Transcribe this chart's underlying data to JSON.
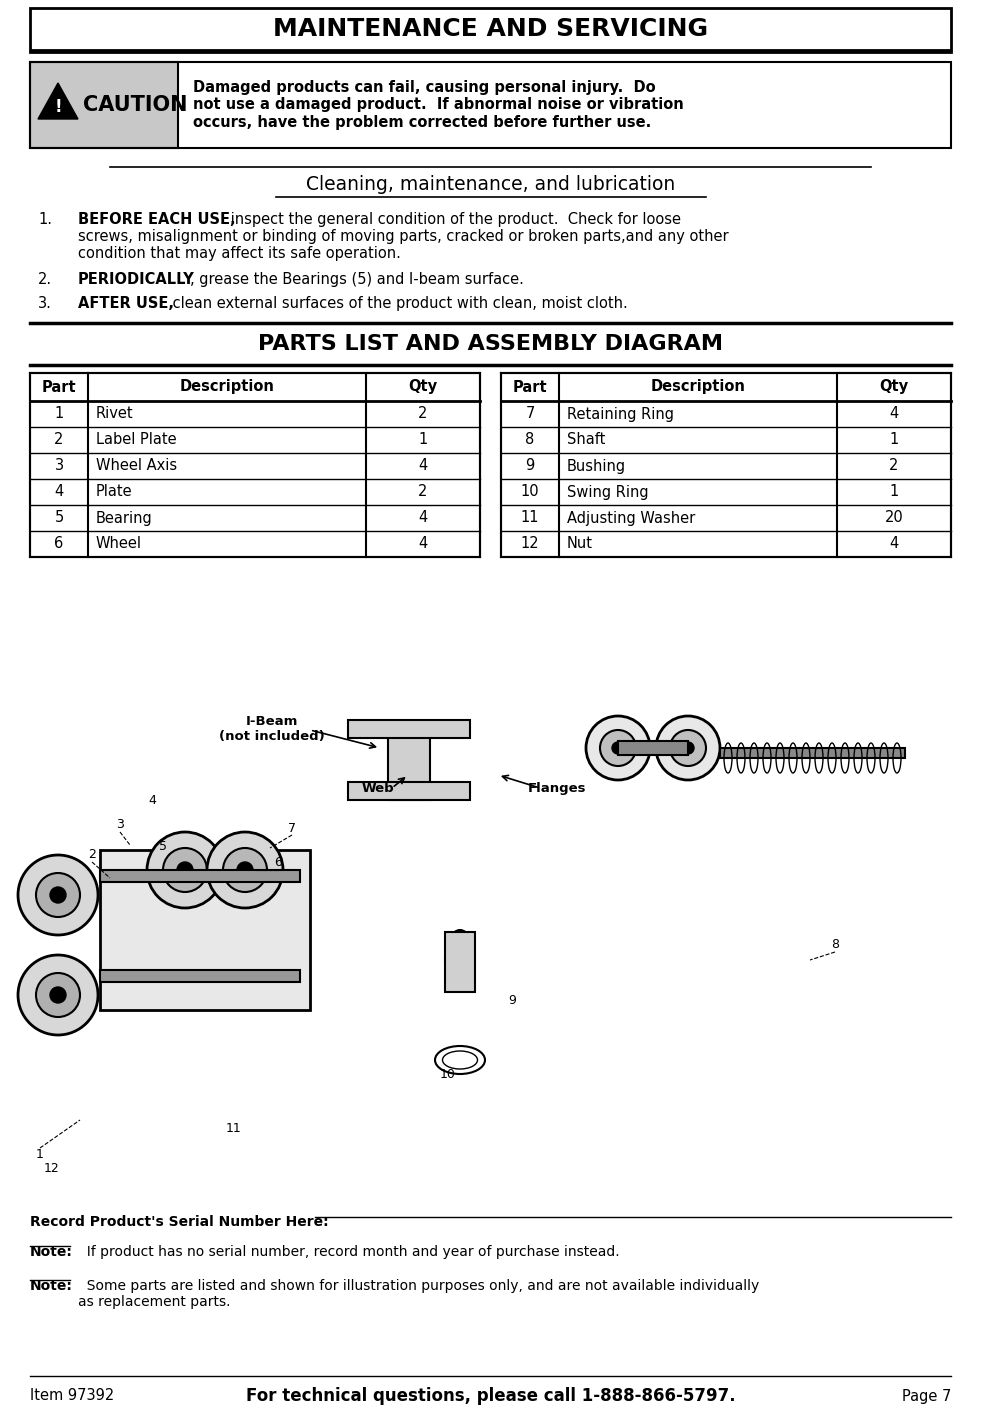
{
  "title": "MAINTENANCE AND SERVICING",
  "caution_text": "Damaged products can fail, causing personal injury.  Do\nnot use a damaged product.  If abnormal noise or vibration\noccurs, have the problem corrected before further use.",
  "cleaning_title": "Cleaning, maintenance, and lubrication",
  "parts_title": "PARTS LIST AND ASSEMBLY DIAGRAM",
  "left_table": {
    "headers": [
      "Part",
      "Description",
      "Qty"
    ],
    "rows": [
      [
        "1",
        "Rivet",
        "2"
      ],
      [
        "2",
        "Label Plate",
        "1"
      ],
      [
        "3",
        "Wheel Axis",
        "4"
      ],
      [
        "4",
        "Plate",
        "2"
      ],
      [
        "5",
        "Bearing",
        "4"
      ],
      [
        "6",
        "Wheel",
        "4"
      ]
    ]
  },
  "right_table": {
    "headers": [
      "Part",
      "Description",
      "Qty"
    ],
    "rows": [
      [
        "7",
        "Retaining Ring",
        "4"
      ],
      [
        "8",
        "Shaft",
        "1"
      ],
      [
        "9",
        "Bushing",
        "2"
      ],
      [
        "10",
        "Swing Ring",
        "1"
      ],
      [
        "11",
        "Adjusting Washer",
        "20"
      ],
      [
        "12",
        "Nut",
        "4"
      ]
    ]
  },
  "ibeam_label": "I-Beam\n(not included)",
  "web_label": "Web",
  "flanges_label": "Flanges",
  "footer_serial": "Record Product's Serial Number Here:",
  "footer_note1_bold": "Note:",
  "footer_note1_text": "  If product has no serial number, record month and year of purchase instead.",
  "footer_note2_bold": "Note:",
  "footer_note2_text": "  Some parts are listed and shown for illustration purposes only, and are not available individually\nas replacement parts.",
  "footer_item": "Item 97392",
  "footer_center": "For technical questions, please call 1-888-866-5797.",
  "footer_page": "Page 7",
  "bg_color": "#ffffff",
  "caution_bg": "#c8c8c8"
}
